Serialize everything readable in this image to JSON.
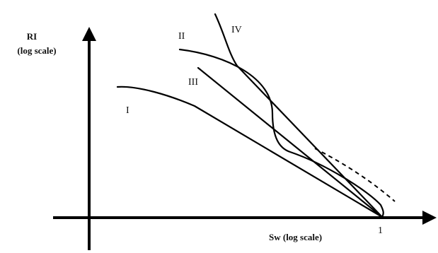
{
  "chart_data": {
    "type": "line",
    "ylabel_line1": "RI",
    "ylabel_line2": "(log scale)",
    "xlabel": "Sw  (log scale)",
    "x_tick_label": "1",
    "series": [
      {
        "name": "I"
      },
      {
        "name": "II"
      },
      {
        "name": "III"
      },
      {
        "name": "IV"
      }
    ],
    "has_dashed_extension": true,
    "grid": false
  }
}
